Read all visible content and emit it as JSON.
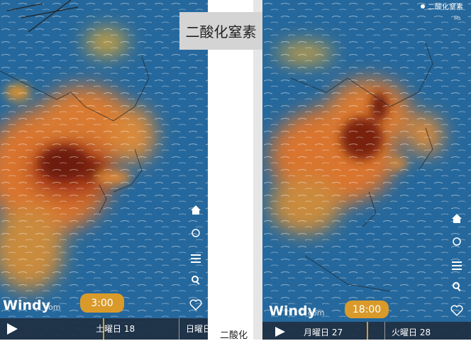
{
  "caption": "二酸化窒素",
  "bottom_caption": "二酸化",
  "left_panel": {
    "brand": "Windy",
    "brand_suffix": "com",
    "time": "3:00",
    "days": [
      "土曜日 18",
      "日曜日"
    ]
  },
  "right_panel": {
    "layer": "二酸化窒素",
    "unit": "Ms",
    "brand": "Windy",
    "brand_suffix": "com",
    "time": "18:00",
    "days": [
      "月曜日 27",
      "火曜日 28"
    ]
  }
}
